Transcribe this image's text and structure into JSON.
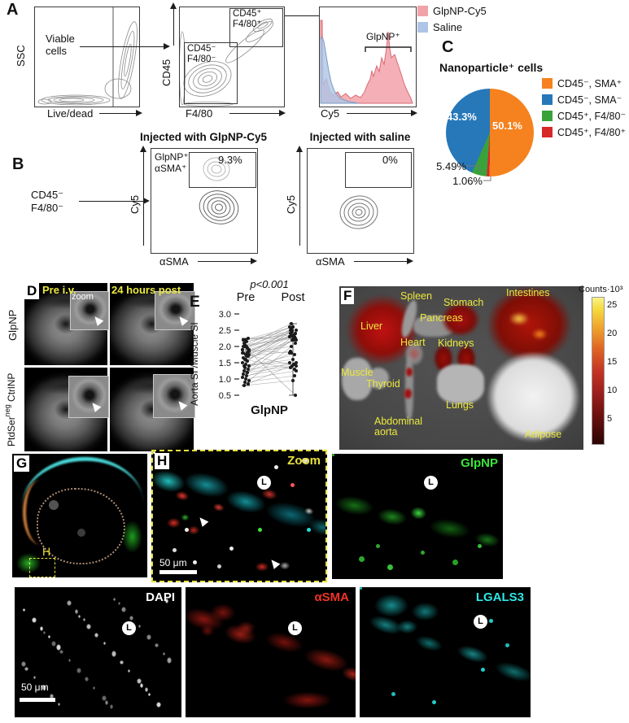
{
  "figure": {
    "a": {
      "label": "A",
      "p1_ylabel": "SSC",
      "p1_xlabel": "Live/dead",
      "p1_gate": "Viable\ncells",
      "p2_ylabel": "CD45",
      "p2_xlabel": "F4/80",
      "p2_gate_pos": "CD45⁺\nF4/80⁺",
      "p2_gate_neg": "CD45⁻\nF4/80⁻",
      "p3_xlabel": "Cy5",
      "p3_gate": "GlpNP⁺",
      "legend": [
        {
          "label": "GlpNP-Cy5",
          "color": "#f2a2a9"
        },
        {
          "label": "Saline",
          "color": "#adc5e6"
        }
      ]
    },
    "b": {
      "label": "B",
      "input_population": "CD45⁻\nF4/80⁻",
      "title_left": "Injected with GlpNP-Cy5",
      "title_right": "Injected with saline",
      "gate_line1": "GlpNP⁺",
      "gate_line2": "αSMA⁺",
      "pct_left": "9.3%",
      "pct_right": "0%",
      "ylabel": "Cy5",
      "xlabel": "αSMA"
    },
    "c": {
      "label": "C"
    },
    "d": {
      "label": "D",
      "col1_title": "Pre i.v.",
      "col2_title": "24 hours post",
      "inset_label": "zoom",
      "row1_label": "GlpNP",
      "row2_base": "PtdSer",
      "row2_sup": "neg",
      "row2_rest": " CtrlNP",
      "title_color": "#ece93d"
    },
    "e": {
      "label": "E"
    },
    "f": {
      "label": "F",
      "label_color": "#ece93d",
      "organs": [
        "Spleen",
        "Stomach",
        "Intestines",
        "Liver",
        "Pancreas",
        "Heart",
        "Kidneys",
        "Muscle",
        "Thyroid",
        "Lungs",
        "Abdominal\naorta",
        "Adipose"
      ],
      "colorbar_title": "Counts·10³",
      "colorbar_ticks": [
        "25",
        "20",
        "15",
        "10",
        "5"
      ]
    },
    "g": {
      "label": "G",
      "roi_label": "H"
    },
    "h": {
      "label": "H",
      "tag": "Zoom",
      "tag_color": "#e8e23c",
      "lumen": "L",
      "scale": "50 μm"
    },
    "h_glpnp": {
      "label": "GlpNP",
      "color": "#3ce43c",
      "lumen": "L"
    },
    "dapi": {
      "label": "DAPI",
      "color": "#ffffff",
      "lumen": "L",
      "scale": "50 μm"
    },
    "asma": {
      "label": "αSMA",
      "color": "#f03326",
      "lumen": "L"
    },
    "lgals3": {
      "label": "LGALS3",
      "color": "#2ee6e6",
      "lumen": "L"
    }
  },
  "chart_data": [
    {
      "type": "pie",
      "panel": "C",
      "title": "Nanoparticle⁺ cells",
      "slices": [
        {
          "label": "CD45⁻, SMA⁺",
          "value": 50.1,
          "color": "#f5821e"
        },
        {
          "label": "CD45⁺, F4/80⁺",
          "value": 1.06,
          "color": "#d7282a"
        },
        {
          "label": "CD45⁺, F4/80⁻",
          "value": 5.49,
          "color": "#3aa23a"
        },
        {
          "label": "CD45⁻, SMA⁻",
          "value": 43.3,
          "color": "#2678b9"
        }
      ],
      "inside_labels": [
        "50.1%",
        "43.3%"
      ],
      "callout_labels": [
        "5.49%",
        "1.06%"
      ],
      "legend_position": "right"
    },
    {
      "type": "line",
      "panel": "E",
      "title": "p<0.001",
      "xlabel": "GlpNP",
      "ylabel": "Aorta SI /Muscle SI",
      "categories": [
        "Pre",
        "Post"
      ],
      "ylim": [
        0.5,
        3.0
      ],
      "yticks": [
        3.0,
        2.5,
        2.0,
        1.5,
        1.0,
        0.5
      ],
      "pairs": [
        [
          1.8,
          2.3
        ],
        [
          2.2,
          2.5
        ],
        [
          1.9,
          2.4
        ],
        [
          2.0,
          2.3
        ],
        [
          1.7,
          2.2
        ],
        [
          2.1,
          2.6
        ],
        [
          1.8,
          2.5
        ],
        [
          2.2,
          2.35
        ],
        [
          2.0,
          2.5
        ],
        [
          1.9,
          1.8
        ],
        [
          1.6,
          2.2
        ],
        [
          1.75,
          2.4
        ],
        [
          2.05,
          2.25
        ],
        [
          1.85,
          2.35
        ],
        [
          2.2,
          2.6
        ],
        [
          1.95,
          2.45
        ],
        [
          1.8,
          2.0
        ],
        [
          1.7,
          1.85
        ],
        [
          1.5,
          2.3
        ],
        [
          1.45,
          1.5
        ],
        [
          1.4,
          2.25
        ],
        [
          1.35,
          1.75
        ],
        [
          1.3,
          1.45
        ],
        [
          1.25,
          2.3
        ],
        [
          1.2,
          1.4
        ],
        [
          1.15,
          1.8
        ],
        [
          1.1,
          1.35
        ],
        [
          1.05,
          1.5
        ],
        [
          1.0,
          1.25
        ],
        [
          0.95,
          2.1
        ],
        [
          0.9,
          1.1
        ],
        [
          0.85,
          1.45
        ],
        [
          0.8,
          0.95
        ],
        [
          1.55,
          2.5
        ],
        [
          1.65,
          2.55
        ],
        [
          2.15,
          2.4
        ],
        [
          1.9,
          2.6
        ],
        [
          1.75,
          1.4
        ],
        [
          1.85,
          0.5
        ],
        [
          1.6,
          1.3
        ],
        [
          2.25,
          2.25
        ],
        [
          1.4,
          1.6
        ],
        [
          1.2,
          2.2
        ],
        [
          2.0,
          2.7
        ]
      ]
    }
  ]
}
